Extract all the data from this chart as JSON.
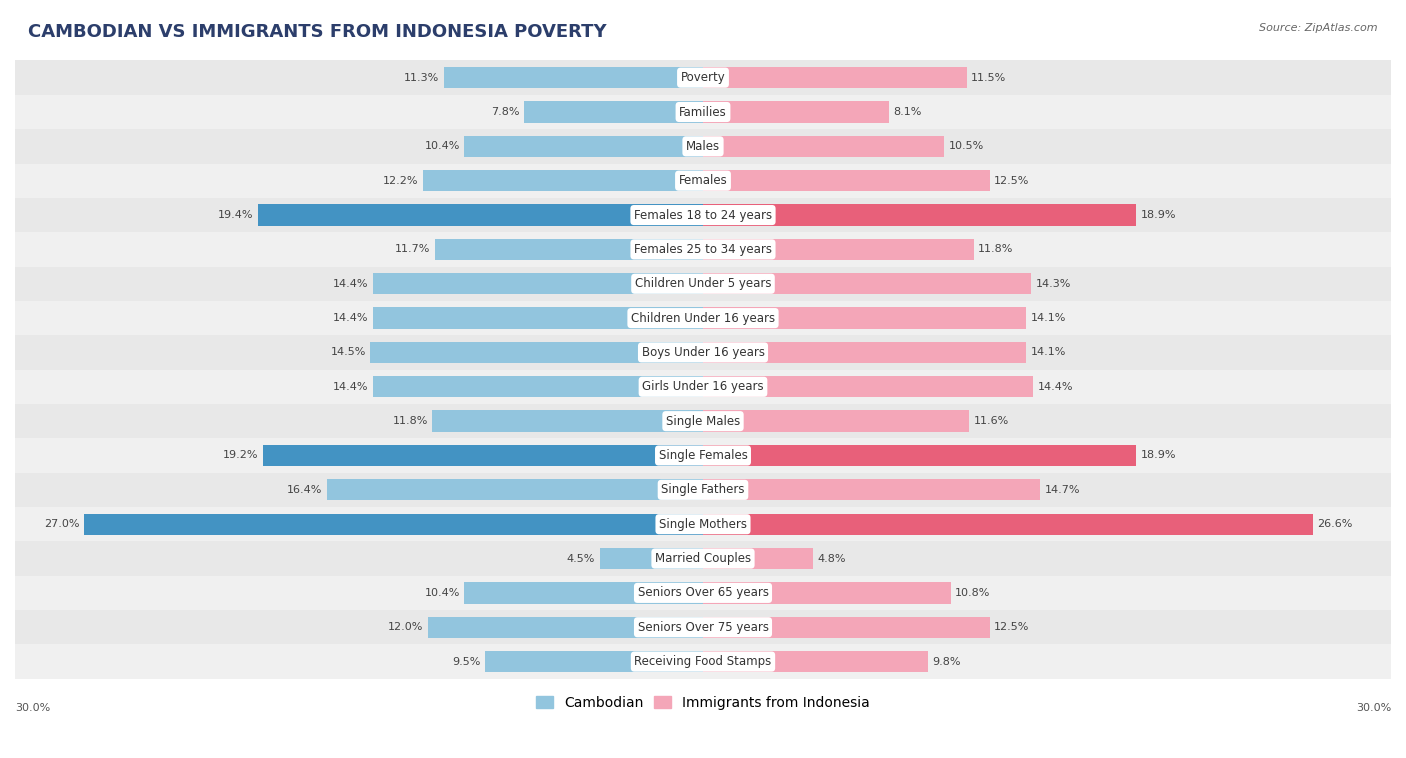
{
  "title": "CAMBODIAN VS IMMIGRANTS FROM INDONESIA POVERTY",
  "source": "Source: ZipAtlas.com",
  "categories": [
    "Poverty",
    "Families",
    "Males",
    "Females",
    "Females 18 to 24 years",
    "Females 25 to 34 years",
    "Children Under 5 years",
    "Children Under 16 years",
    "Boys Under 16 years",
    "Girls Under 16 years",
    "Single Males",
    "Single Females",
    "Single Fathers",
    "Single Mothers",
    "Married Couples",
    "Seniors Over 65 years",
    "Seniors Over 75 years",
    "Receiving Food Stamps"
  ],
  "cambodian": [
    11.3,
    7.8,
    10.4,
    12.2,
    19.4,
    11.7,
    14.4,
    14.4,
    14.5,
    14.4,
    11.8,
    19.2,
    16.4,
    27.0,
    4.5,
    10.4,
    12.0,
    9.5
  ],
  "indonesia": [
    11.5,
    8.1,
    10.5,
    12.5,
    18.9,
    11.8,
    14.3,
    14.1,
    14.1,
    14.4,
    11.6,
    18.9,
    14.7,
    26.6,
    4.8,
    10.8,
    12.5,
    9.8
  ],
  "cambodian_color": "#92c5de",
  "indonesia_color": "#f4a6b8",
  "highlight_cambodian": [
    4,
    11,
    13
  ],
  "highlight_indonesia": [
    4,
    11,
    13
  ],
  "highlight_color_cambodian": "#4393c3",
  "highlight_color_indonesia": "#e8607a",
  "bar_height": 0.62,
  "xlim": [
    0,
    30
  ],
  "row_colors": [
    "#e8e8e8",
    "#f0f0f0"
  ],
  "label_fontsize": 8.5,
  "value_fontsize": 8.0,
  "title_fontsize": 13,
  "legend_fontsize": 10,
  "axis_label": "30.0%"
}
